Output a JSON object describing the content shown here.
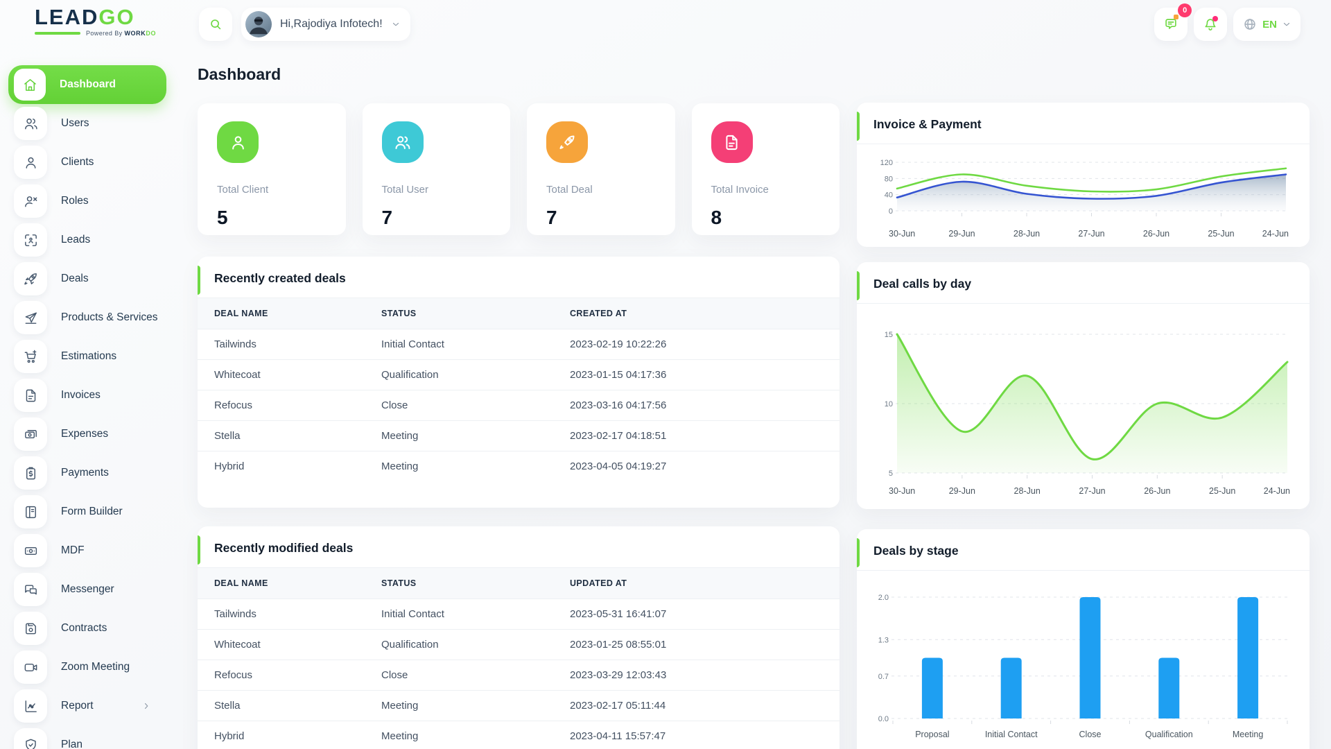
{
  "colors": {
    "primary_green": "#6fd943",
    "cyan": "#3ec9d6",
    "orange": "#f6a43b",
    "pink": "#f43f76",
    "bar_blue": "#1e9ff2",
    "line_blue": "#3554d1"
  },
  "header": {
    "logo": {
      "part1": "LEAD",
      "part2": "GO",
      "powered_prefix": "Powered By",
      "brand1": "WORK",
      "brand2": "DO"
    },
    "search_icon": "search-icon",
    "greeting": "Hi,Rajodiya Infotech!",
    "messages_badge": "0",
    "icons": [
      "chat-icon",
      "bell-icon",
      "globe-icon",
      "chevron-down-icon"
    ],
    "language": "EN"
  },
  "page": {
    "title": "Dashboard"
  },
  "sidebar": {
    "items": [
      {
        "label": "Dashboard",
        "icon": "home-icon",
        "active": true
      },
      {
        "label": "Users",
        "icon": "users-icon"
      },
      {
        "label": "Clients",
        "icon": "user-icon"
      },
      {
        "label": "Roles",
        "icon": "user-x-icon"
      },
      {
        "label": "Leads",
        "icon": "focus-icon"
      },
      {
        "label": "Deals",
        "icon": "rocket-icon"
      },
      {
        "label": "Products & Services",
        "icon": "send-icon"
      },
      {
        "label": "Estimations",
        "icon": "cart-plus-icon"
      },
      {
        "label": "Invoices",
        "icon": "file-icon"
      },
      {
        "label": "Expenses",
        "icon": "banknotes-icon"
      },
      {
        "label": "Payments",
        "icon": "clipboard-dollar-icon"
      },
      {
        "label": "Form Builder",
        "icon": "form-icon"
      },
      {
        "label": "MDF",
        "icon": "banknote-icon"
      },
      {
        "label": "Messenger",
        "icon": "chat-bubbles-icon"
      },
      {
        "label": "Contracts",
        "icon": "floppy-icon"
      },
      {
        "label": "Zoom Meeting",
        "icon": "video-icon"
      },
      {
        "label": "Report",
        "icon": "report-chart-icon",
        "has_submenu": true
      },
      {
        "label": "Plan",
        "icon": "shield-icon"
      }
    ]
  },
  "stats": [
    {
      "label": "Total Client",
      "value": "5",
      "icon": "user-icon",
      "color": "#6fd943"
    },
    {
      "label": "Total User",
      "value": "7",
      "icon": "users-icon",
      "color": "#3ec9d6"
    },
    {
      "label": "Total Deal",
      "value": "7",
      "icon": "rocket-icon",
      "color": "#f6a43b"
    },
    {
      "label": "Total Invoice",
      "value": "8",
      "icon": "invoice-icon",
      "color": "#f43f76"
    }
  ],
  "tables": {
    "created": {
      "title": "Recently created deals",
      "columns": [
        "DEAL NAME",
        "STATUS",
        "CREATED AT"
      ],
      "rows": [
        [
          "Tailwinds",
          "Initial Contact",
          "2023-02-19 10:22:26"
        ],
        [
          "Whitecoat",
          "Qualification",
          "2023-01-15 04:17:36"
        ],
        [
          "Refocus",
          "Close",
          "2023-03-16 04:17:56"
        ],
        [
          "Stella",
          "Meeting",
          "2023-02-17 04:18:51"
        ],
        [
          "Hybrid",
          "Meeting",
          "2023-04-05 04:19:27"
        ]
      ]
    },
    "modified": {
      "title": "Recently modified deals",
      "columns": [
        "DEAL NAME",
        "STATUS",
        "UPDATED AT"
      ],
      "rows": [
        [
          "Tailwinds",
          "Initial Contact",
          "2023-05-31 16:41:07"
        ],
        [
          "Whitecoat",
          "Qualification",
          "2023-01-25 08:55:01"
        ],
        [
          "Refocus",
          "Close",
          "2023-03-29 12:03:43"
        ],
        [
          "Stella",
          "Meeting",
          "2023-02-17 05:11:44"
        ],
        [
          "Hybrid",
          "Meeting",
          "2023-04-11 15:57:47"
        ]
      ]
    }
  },
  "chart_data": [
    {
      "type": "line",
      "title": "Invoice & Payment",
      "categories": [
        "30-Jun",
        "29-Jun",
        "28-Jun",
        "27-Jun",
        "26-Jun",
        "25-Jun",
        "24-Jun"
      ],
      "series": [
        {
          "name": "Invoice",
          "color": "#6fd943",
          "values": [
            55,
            90,
            62,
            48,
            53,
            85,
            105
          ]
        },
        {
          "name": "Payment",
          "color": "#3554d1",
          "values": [
            33,
            72,
            42,
            30,
            37,
            70,
            90
          ],
          "fill_from": "#64809f",
          "fill_from_opacity": 0.55,
          "fill_to": "#e8edf3",
          "fill_to_opacity": 0.2
        }
      ],
      "yticks": [
        0,
        40,
        80,
        120
      ],
      "ylim": [
        0,
        130
      ],
      "grid": "dashed",
      "legend": "none"
    },
    {
      "type": "area",
      "title": "Deal calls by day",
      "categories": [
        "30-Jun",
        "29-Jun",
        "28-Jun",
        "27-Jun",
        "26-Jun",
        "25-Jun",
        "24-Jun"
      ],
      "series": [
        {
          "name": "Deal calls",
          "color": "#6fd943",
          "values": [
            15,
            8,
            12,
            6,
            10,
            9,
            13
          ],
          "fill_from": "#6fd943",
          "fill_from_opacity": 0.42,
          "fill_to": "#6fd943",
          "fill_to_opacity": 0.05
        }
      ],
      "yticks": [
        5,
        10,
        15
      ],
      "ylim": [
        5,
        15.6
      ],
      "grid": "dashed",
      "legend": "none"
    },
    {
      "type": "bar",
      "title": "Deals by stage",
      "categories": [
        "Proposal",
        "Initial Contact",
        "Close",
        "Qualification",
        "Meeting"
      ],
      "series": [
        {
          "name": "Deals",
          "color": "#1e9ff2",
          "values": [
            1,
            1,
            2,
            1,
            2
          ]
        }
      ],
      "yticks": [
        0,
        0.7,
        1.3,
        2
      ],
      "ytick_labels": [
        "0.0",
        "0.7",
        "1.3",
        "2.0"
      ],
      "ylim": [
        0,
        2.17
      ],
      "grid": "dashed",
      "legend": "none"
    }
  ]
}
